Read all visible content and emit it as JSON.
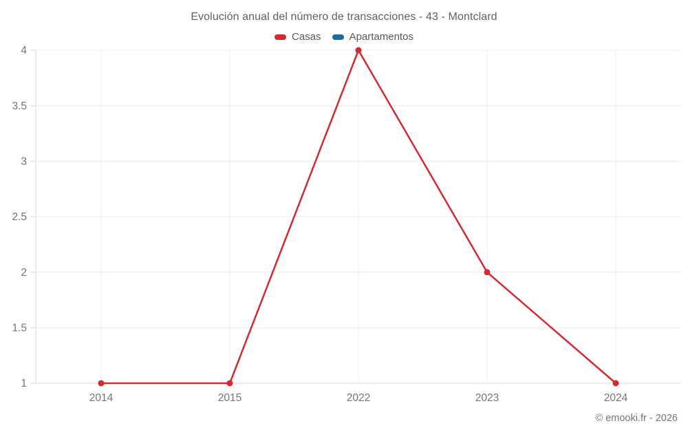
{
  "header": {
    "title": "Evolución anual del número de transacciones - 43 - Montclard"
  },
  "footer": {
    "credit": "© emooki.fr - 2026"
  },
  "chart_data": {
    "type": "line",
    "title": "Evolución anual del número de transacciones - 43 - Montclard",
    "categories": [
      "2014",
      "2015",
      "2022",
      "2023",
      "2024"
    ],
    "series": [
      {
        "name": "Casas",
        "color": "#d5292d",
        "values": [
          1,
          1,
          4,
          2,
          1
        ]
      },
      {
        "name": "Apartamentos",
        "color": "#1a6d9e",
        "values": []
      }
    ],
    "xlabel": "",
    "ylabel": "",
    "ylim": [
      1,
      4
    ],
    "y_ticks": [
      1,
      1.5,
      2,
      2.5,
      3,
      3.5,
      4
    ],
    "grid": true,
    "legend_position": "top",
    "colors": {
      "grid": "#ececec",
      "axis": "#d9d9d9",
      "tick_text": "#757575",
      "title_text": "#616161"
    }
  }
}
